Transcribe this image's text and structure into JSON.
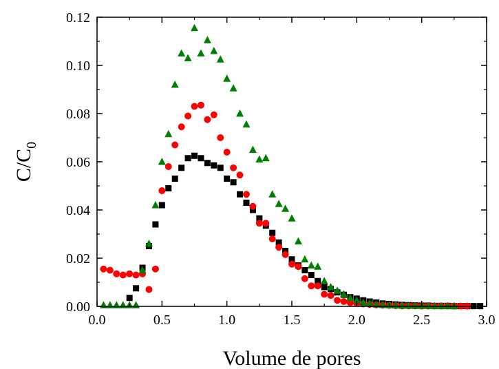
{
  "chart_data": {
    "type": "scatter",
    "title": "",
    "xlabel": "Volume de pores",
    "ylabel": "C/C",
    "ylabel_subscript": "0",
    "xlim": [
      0.0,
      3.0
    ],
    "ylim": [
      0.0,
      0.12
    ],
    "x_ticks": [
      "0.0",
      "0.5",
      "1.0",
      "1.5",
      "2.0",
      "2.5",
      "3.0"
    ],
    "y_ticks": [
      "0.00",
      "0.02",
      "0.04",
      "0.06",
      "0.08",
      "0.10",
      "0.12"
    ],
    "grid": false,
    "legend": "none",
    "series": [
      {
        "marker": "square",
        "color": "#000000",
        "x": [
          0.25,
          0.3,
          0.35,
          0.4,
          0.45,
          0.5,
          0.55,
          0.6,
          0.65,
          0.7,
          0.75,
          0.8,
          0.85,
          0.9,
          0.95,
          1.0,
          1.05,
          1.1,
          1.15,
          1.2,
          1.25,
          1.3,
          1.35,
          1.4,
          1.45,
          1.5,
          1.55,
          1.6,
          1.65,
          1.7,
          1.75,
          1.8,
          1.85,
          1.9,
          1.95,
          2.0,
          2.05,
          2.1,
          2.15,
          2.2,
          2.25,
          2.3,
          2.35,
          2.4,
          2.45,
          2.5,
          2.55,
          2.6,
          2.65,
          2.7,
          2.75,
          2.8,
          2.85,
          2.9,
          2.95
        ],
        "y": [
          0.0035,
          0.0075,
          0.016,
          0.025,
          0.034,
          0.042,
          0.049,
          0.053,
          0.0575,
          0.0615,
          0.0625,
          0.0615,
          0.0595,
          0.0585,
          0.0575,
          0.053,
          0.0515,
          0.0465,
          0.043,
          0.04,
          0.0365,
          0.0335,
          0.0305,
          0.0265,
          0.023,
          0.0195,
          0.017,
          0.015,
          0.013,
          0.0105,
          0.008,
          0.0072,
          0.0058,
          0.0048,
          0.0038,
          0.0032,
          0.0025,
          0.002,
          0.0016,
          0.0012,
          0.001,
          0.0008,
          0.0006,
          0.0005,
          0.0004,
          0.0003,
          0.0003,
          0.0002,
          0.0002,
          0.0002,
          0.0001,
          0.0001,
          0.0001,
          0.0001,
          0.0001
        ]
      },
      {
        "marker": "circle",
        "color": "#ff0000",
        "x": [
          0.05,
          0.1,
          0.15,
          0.2,
          0.25,
          0.3,
          0.35,
          0.4,
          0.45,
          0.5,
          0.55,
          0.6,
          0.65,
          0.7,
          0.75,
          0.8,
          0.85,
          0.9,
          0.95,
          1.0,
          1.05,
          1.1,
          1.15,
          1.2,
          1.25,
          1.3,
          1.35,
          1.4,
          1.45,
          1.5,
          1.55,
          1.6,
          1.65,
          1.7,
          1.75,
          1.8,
          1.85,
          1.9,
          1.95,
          2.0,
          2.05,
          2.1,
          2.15,
          2.2,
          2.25,
          2.3,
          2.35,
          2.4,
          2.45,
          2.5,
          2.55,
          2.6,
          2.65,
          2.7,
          2.75,
          2.8,
          2.85
        ],
        "y": [
          0.0155,
          0.015,
          0.0135,
          0.013,
          0.0135,
          0.013,
          0.0135,
          0.007,
          0.0155,
          0.048,
          0.058,
          0.067,
          0.0745,
          0.079,
          0.083,
          0.0835,
          0.0775,
          0.0795,
          0.07,
          0.064,
          0.0575,
          0.0545,
          0.0465,
          0.0415,
          0.0345,
          0.0345,
          0.028,
          0.0245,
          0.0215,
          0.0175,
          0.0165,
          0.0115,
          0.0085,
          0.0085,
          0.005,
          0.0045,
          0.0025,
          0.002,
          0.0015,
          0.0012,
          0.001,
          0.0008,
          0.0006,
          0.0005,
          0.0004,
          0.0003,
          0.0002,
          0.0002,
          0.0002,
          0.0001,
          0.0001,
          0.0001,
          0.0001,
          0.0001,
          0.0001,
          0.0001,
          0.0001
        ]
      },
      {
        "marker": "triangle",
        "color": "#008000",
        "x": [
          0.05,
          0.1,
          0.15,
          0.2,
          0.25,
          0.3,
          0.35,
          0.4,
          0.45,
          0.5,
          0.55,
          0.6,
          0.65,
          0.7,
          0.75,
          0.8,
          0.85,
          0.9,
          0.95,
          1.0,
          1.05,
          1.1,
          1.15,
          1.2,
          1.25,
          1.3,
          1.35,
          1.4,
          1.45,
          1.5,
          1.55,
          1.6,
          1.65,
          1.7,
          1.75,
          1.8,
          1.85,
          1.9,
          1.95,
          2.0,
          2.05,
          2.1,
          2.15,
          2.2,
          2.25,
          2.3,
          2.35,
          2.4,
          2.45,
          2.5,
          2.55,
          2.6,
          2.65,
          2.7,
          2.75
        ],
        "y": [
          0.0005,
          0.0005,
          0.0005,
          0.0005,
          0.0005,
          0.0005,
          0.015,
          0.026,
          0.042,
          0.06,
          0.0715,
          0.092,
          0.105,
          0.103,
          0.1155,
          0.105,
          0.1105,
          0.106,
          0.1025,
          0.0945,
          0.0905,
          0.08,
          0.0755,
          0.065,
          0.061,
          0.0615,
          0.0465,
          0.0425,
          0.0405,
          0.0365,
          0.027,
          0.0195,
          0.017,
          0.0165,
          0.0105,
          0.008,
          0.0065,
          0.005,
          0.0035,
          0.0025,
          0.0015,
          0.0012,
          0.0008,
          0.0006,
          0.0005,
          0.0004,
          0.0003,
          0.0003,
          0.0002,
          0.0002,
          0.0002,
          0.0001,
          0.0001,
          0.0001,
          0.0001
        ]
      }
    ]
  }
}
